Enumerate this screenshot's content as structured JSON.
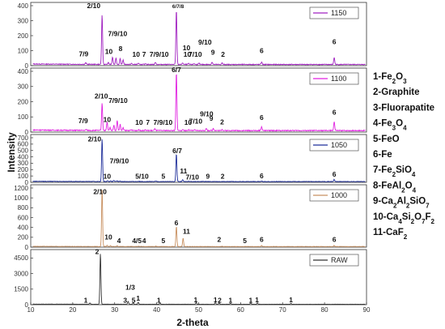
{
  "chart_data": {
    "type": "line",
    "xlabel": "2-theta",
    "ylabel": "Intensity",
    "xlim": [
      10,
      90
    ],
    "xticks": [
      10,
      20,
      30,
      40,
      50,
      60,
      70,
      80,
      90
    ],
    "key": [
      "1-Fe2O3",
      "2-Graphite",
      "3-Fluorapatite",
      "4-Fe3O4",
      "5-FeO",
      "6-Fe",
      "7-Fe2SiO4",
      "8-FeAl2O4",
      "9-Ca2Al2SiO7",
      "10-Ca4Si2O7F2",
      "11-CaF2"
    ],
    "panels": [
      {
        "name": "1150",
        "color": "#a020c0",
        "ylim": [
          0,
          400
        ],
        "yticks": [
          0,
          100,
          200,
          300,
          400
        ],
        "baseline": 8,
        "peaks": [
          [
            23.1,
            18
          ],
          [
            27.0,
            340
          ],
          [
            28.5,
            20
          ],
          [
            29.5,
            55
          ],
          [
            30.3,
            50
          ],
          [
            31.3,
            45
          ],
          [
            32.0,
            38
          ],
          [
            34.0,
            14
          ],
          [
            35.6,
            15
          ],
          [
            37.4,
            14
          ],
          [
            39.7,
            22
          ],
          [
            44.7,
            375
          ],
          [
            46.2,
            18
          ],
          [
            47.6,
            14
          ],
          [
            48.9,
            14
          ],
          [
            50.1,
            16
          ],
          [
            53.2,
            24
          ],
          [
            55.6,
            18
          ],
          [
            65.0,
            24
          ],
          [
            82.3,
            55
          ]
        ],
        "labels": [
          [
            "7/9",
            22.6,
            62
          ],
          [
            "2/10",
            25.0,
            385
          ],
          [
            "10",
            28.6,
            78
          ],
          [
            "7/9/10",
            30.7,
            197
          ],
          [
            "8",
            31.4,
            98
          ],
          [
            "10",
            35.1,
            60
          ],
          [
            "7",
            37.0,
            60
          ],
          [
            "7/9/10",
            40.6,
            60
          ],
          [
            "6/7/8",
            45.1,
            385
          ],
          [
            "10",
            47.1,
            102
          ],
          [
            "10",
            47.3,
            60
          ],
          [
            "7/10",
            49.2,
            60
          ],
          [
            "9/10",
            51.5,
            141
          ],
          [
            "9",
            53.4,
            73
          ],
          [
            "2",
            55.8,
            60
          ],
          [
            "6",
            65.0,
            85
          ],
          [
            "6",
            82.3,
            142
          ]
        ]
      },
      {
        "name": "1100",
        "color": "#e020e0",
        "ylim": [
          0,
          400
        ],
        "yticks": [
          0,
          100,
          200,
          300,
          400
        ],
        "baseline": 10,
        "peaks": [
          [
            23.2,
            16
          ],
          [
            27.0,
            190
          ],
          [
            28.2,
            65
          ],
          [
            28.9,
            30
          ],
          [
            29.8,
            45
          ],
          [
            30.6,
            75
          ],
          [
            31.3,
            50
          ],
          [
            32.0,
            28
          ],
          [
            34.0,
            14
          ],
          [
            35.7,
            14
          ],
          [
            37.3,
            14
          ],
          [
            39.6,
            22
          ],
          [
            44.7,
            395
          ],
          [
            46.3,
            16
          ],
          [
            47.6,
            14
          ],
          [
            49.0,
            14
          ],
          [
            51.8,
            24
          ],
          [
            53.5,
            26
          ],
          [
            55.6,
            18
          ],
          [
            65.0,
            35
          ],
          [
            82.3,
            70
          ]
        ],
        "labels": [
          [
            "7/9",
            22.5,
            58
          ],
          [
            "2/10",
            26.8,
            222
          ],
          [
            "10",
            28.2,
            68
          ],
          [
            "7/9/10",
            30.8,
            192
          ],
          [
            "10",
            35.8,
            48
          ],
          [
            "7",
            37.9,
            48
          ],
          [
            "7/9/10",
            41.5,
            48
          ],
          [
            "6/7",
            44.7,
            395
          ],
          [
            "10",
            47.5,
            48
          ],
          [
            "7/10",
            49.3,
            56
          ],
          [
            "9/10",
            51.9,
            103
          ],
          [
            "9",
            53.0,
            76
          ],
          [
            "2",
            55.6,
            50
          ],
          [
            "6",
            65.0,
            80
          ],
          [
            "6",
            82.3,
            115
          ]
        ]
      },
      {
        "name": "1050",
        "color": "#1f2f9a",
        "ylim": [
          0,
          700
        ],
        "yticks": [
          0,
          100,
          200,
          300,
          400,
          500,
          600,
          700
        ],
        "baseline": 12,
        "peaks": [
          [
            23.2,
            14
          ],
          [
            27.0,
            680
          ],
          [
            28.3,
            26
          ],
          [
            29.0,
            20
          ],
          [
            29.8,
            30
          ],
          [
            30.6,
            22
          ],
          [
            31.3,
            18
          ],
          [
            35.7,
            16
          ],
          [
            36.5,
            14
          ],
          [
            39.8,
            20
          ],
          [
            44.7,
            450
          ],
          [
            46.2,
            40
          ],
          [
            47.6,
            16
          ],
          [
            51.0,
            16
          ],
          [
            55.6,
            14
          ],
          [
            65.0,
            20
          ],
          [
            82.3,
            45
          ]
        ],
        "labels": [
          [
            "2/10",
            25.2,
            640
          ],
          [
            "10",
            28.2,
            60
          ],
          [
            "7/9/10",
            31.1,
            298
          ],
          [
            "5/10",
            36.5,
            60
          ],
          [
            "5",
            41.6,
            60
          ],
          [
            "6/7",
            44.9,
            460
          ],
          [
            "11",
            46.4,
            143
          ],
          [
            "7/10",
            48.5,
            47
          ],
          [
            "9",
            52.2,
            60
          ],
          [
            "2",
            55.7,
            60
          ],
          [
            "6",
            65.0,
            64
          ],
          [
            "6",
            82.3,
            90
          ]
        ]
      },
      {
        "name": "1000",
        "color": "#c89060",
        "ylim": [
          0,
          1200
        ],
        "yticks": [
          0,
          200,
          400,
          600,
          800,
          1000,
          1200
        ],
        "baseline": 12,
        "peaks": [
          [
            27.0,
            1180
          ],
          [
            28.2,
            35
          ],
          [
            29.0,
            30
          ],
          [
            30.6,
            25
          ],
          [
            33.8,
            16
          ],
          [
            35.7,
            18
          ],
          [
            36.5,
            14
          ],
          [
            39.8,
            20
          ],
          [
            44.7,
            420
          ],
          [
            46.3,
            180
          ],
          [
            55.6,
            16
          ],
          [
            61.5,
            14
          ],
          [
            65.0,
            32
          ],
          [
            82.3,
            34
          ]
        ],
        "labels": [
          [
            "2/10",
            26.5,
            1080
          ],
          [
            "10",
            28.5,
            158
          ],
          [
            "4",
            31.0,
            80
          ],
          [
            "4/5",
            35.3,
            80
          ],
          [
            "4",
            37.0,
            80
          ],
          [
            "5",
            41.6,
            80
          ],
          [
            "6",
            44.7,
            440
          ],
          [
            "11",
            47.1,
            270
          ],
          [
            "2",
            54.9,
            110
          ],
          [
            "5",
            61.0,
            80
          ],
          [
            "6",
            65.0,
            110
          ],
          [
            "6",
            82.3,
            110
          ]
        ]
      },
      {
        "name": "RAW",
        "color": "#333333",
        "ylim": [
          0,
          5000
        ],
        "yticks": [
          0,
          1500,
          3000,
          4500
        ],
        "baseline": 40,
        "peaks": [
          [
            24.1,
            160
          ],
          [
            26.6,
            4950
          ],
          [
            33.2,
            320
          ],
          [
            34.4,
            180
          ],
          [
            35.6,
            230
          ],
          [
            40.8,
            170
          ],
          [
            49.4,
            200
          ],
          [
            54.0,
            200
          ],
          [
            54.9,
            180
          ],
          [
            57.6,
            140
          ],
          [
            62.4,
            170
          ],
          [
            64.0,
            170
          ],
          [
            72.0,
            120
          ]
        ],
        "labels": [
          [
            "1",
            23.1,
            200
          ],
          [
            "2",
            25.8,
            4900
          ],
          [
            "1/3",
            33.7,
            1450
          ],
          [
            "3",
            32.5,
            200
          ],
          [
            "5",
            34.5,
            200
          ],
          [
            "1",
            35.6,
            400
          ],
          [
            "1",
            40.5,
            200
          ],
          [
            "1",
            49.3,
            250
          ],
          [
            "1",
            54.0,
            250
          ],
          [
            "2",
            55.0,
            200
          ],
          [
            "1",
            57.6,
            200
          ],
          [
            "1",
            62.4,
            200
          ],
          [
            "1",
            63.9,
            250
          ],
          [
            "1",
            72.0,
            250
          ]
        ]
      }
    ]
  }
}
